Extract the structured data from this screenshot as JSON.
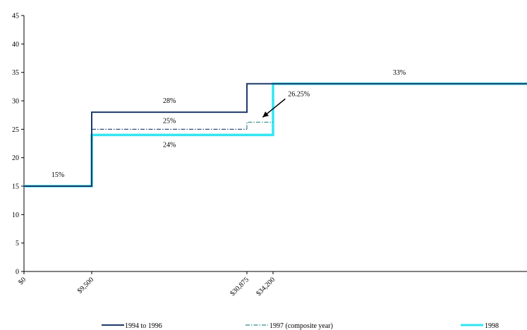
{
  "chart_data": {
    "type": "line",
    "step": true,
    "title": "",
    "xlabel": "",
    "ylabel": "",
    "ylim": [
      0,
      45
    ],
    "yticks": [
      0,
      5,
      10,
      15,
      20,
      25,
      30,
      35,
      40,
      45
    ],
    "xlim": [
      0,
      70000
    ],
    "xticks": [
      {
        "value": 0,
        "label": "$0"
      },
      {
        "value": 9500,
        "label": "$9,500"
      },
      {
        "value": 30875,
        "label": "$30,875"
      },
      {
        "value": 34200,
        "label": "$34,200"
      }
    ],
    "grid": false,
    "legend_position": "bottom",
    "series": [
      {
        "name": "1994 to 1996",
        "color": "#1f3a68",
        "style": "solid",
        "points": [
          [
            0,
            15
          ],
          [
            9500,
            15
          ],
          [
            9500,
            28
          ],
          [
            30875,
            28
          ],
          [
            30875,
            33
          ],
          [
            70000,
            33
          ]
        ]
      },
      {
        "name": "1997 (composite year)",
        "color": "#1f3a68",
        "color2": "#2e8b8b",
        "style": "dashdot",
        "points": [
          [
            9500,
            25
          ],
          [
            30875,
            25
          ],
          [
            30875,
            26.25
          ],
          [
            34200,
            26.25
          ]
        ]
      },
      {
        "name": "1998",
        "color": "#33e6f2",
        "style": "thick",
        "points": [
          [
            0,
            15
          ],
          [
            9500,
            15
          ],
          [
            9500,
            24
          ],
          [
            34200,
            24
          ],
          [
            34200,
            33
          ],
          [
            70000,
            33
          ]
        ]
      }
    ],
    "annotations": [
      {
        "text": "15%",
        "x": 4750,
        "y": 15
      },
      {
        "text": "28%",
        "x": 20200,
        "y": 28
      },
      {
        "text": "25%",
        "x": 20200,
        "y": 25
      },
      {
        "text": "24%",
        "x": 20200,
        "y": 24
      },
      {
        "text": "33%",
        "x": 52000,
        "y": 33
      },
      {
        "text": "26.25%",
        "x": 32700,
        "y": 26.25,
        "arrow": true
      }
    ]
  }
}
